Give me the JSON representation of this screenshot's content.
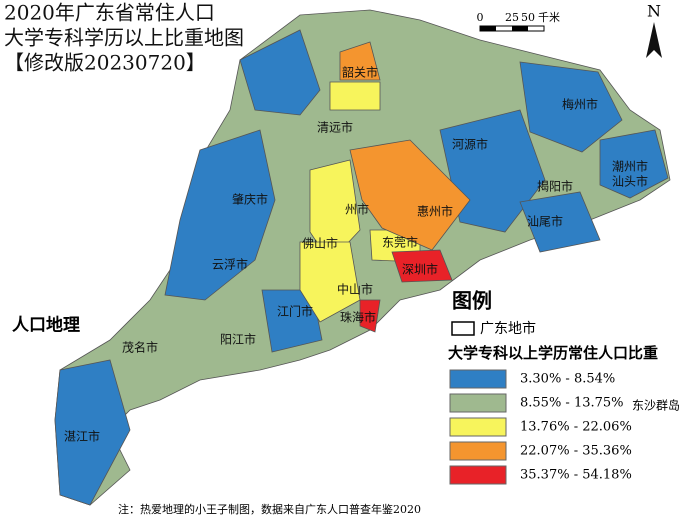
{
  "title": {
    "lines": [
      "2020年广东省常住人口",
      "大学专科学历以上比重地图",
      "【修改版20230720】"
    ]
  },
  "scale_bar": {
    "labels": [
      "0",
      "25",
      "50",
      "千米"
    ]
  },
  "north_arrow": "N",
  "map_labels": {
    "cities": [
      "韶关市",
      "清远市",
      "河源市",
      "梅州市",
      "潮州市",
      "揭阳市",
      "汕头市",
      "汕尾市",
      "惠州市",
      "东莞市",
      "深圳市",
      "州市",
      "佛山市",
      "中山市",
      "珠海市",
      "江门市",
      "云浮市",
      "肇庆市",
      "阳江市",
      "茂名市",
      "湛江市"
    ],
    "other": [
      "人口地理",
      "东沙群岛"
    ]
  },
  "legend": {
    "title": "图例",
    "boundary": "广东地市",
    "subtitle": "大学专科以上学历常住人口比重",
    "classes": [
      {
        "label": "3.30%  -  8.54%",
        "color": "#2f7fc4"
      },
      {
        "label": "8.55%  -  13.75%",
        "color": "#9fb98f"
      },
      {
        "label": "13.76%  -  22.06%",
        "color": "#f7f45c"
      },
      {
        "label": "22.07%  -  35.36%",
        "color": "#f4952f"
      },
      {
        "label": "35.37%  -  54.18%",
        "color": "#e82228"
      }
    ]
  },
  "footer": "注：热爱地理的小王子制图，数据来自广东人口普查年鉴2020"
}
